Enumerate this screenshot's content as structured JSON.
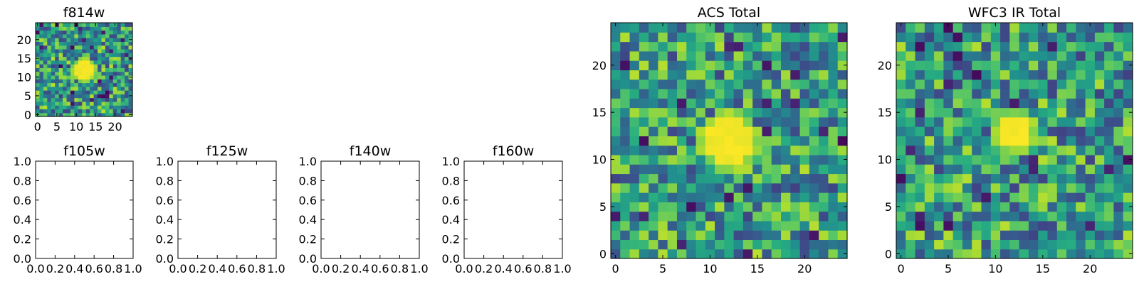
{
  "chart_data": [
    {
      "type": "heatmap",
      "title": "f814w",
      "colormap": "viridis",
      "grid_size": 25,
      "xlim": [
        -0.5,
        24.5
      ],
      "ylim": [
        -0.5,
        24.5
      ],
      "x_ticks": [
        0,
        5,
        10,
        15,
        20
      ],
      "y_ticks": [
        0,
        5,
        10,
        15,
        20
      ],
      "source": {
        "center": [
          12,
          12
        ],
        "radius": 2
      }
    },
    {
      "type": "heatmap",
      "title": "ACS Total",
      "colormap": "viridis",
      "grid_size": 25,
      "xlim": [
        -0.5,
        24.5
      ],
      "ylim": [
        -0.5,
        24.5
      ],
      "x_ticks": [
        0,
        5,
        10,
        15,
        20
      ],
      "y_ticks": [
        0,
        5,
        10,
        15,
        20
      ],
      "source": {
        "center": [
          12,
          12
        ],
        "radius": 2
      }
    },
    {
      "type": "heatmap",
      "title": "WFC3 IR Total",
      "colormap": "viridis",
      "grid_size": 25,
      "xlim": [
        -0.5,
        24.5
      ],
      "ylim": [
        -0.5,
        24.5
      ],
      "x_ticks": [
        0,
        5,
        10,
        15,
        20
      ],
      "y_ticks": [
        0,
        5,
        10,
        15,
        20
      ],
      "source": {
        "center": [
          12,
          13
        ],
        "radius": 1
      }
    },
    {
      "type": "empty",
      "title": "f105w",
      "xlim": [
        0,
        1
      ],
      "ylim": [
        0,
        1
      ],
      "x_ticks": [
        "0.0",
        "0.2",
        "0.4",
        "0.6",
        "0.8",
        "1.0"
      ],
      "y_ticks": [
        "0.0",
        "0.2",
        "0.4",
        "0.6",
        "0.8",
        "1.0"
      ]
    },
    {
      "type": "empty",
      "title": "f125w",
      "xlim": [
        0,
        1
      ],
      "ylim": [
        0,
        1
      ],
      "x_ticks": [
        "0.0",
        "0.2",
        "0.4",
        "0.6",
        "0.8",
        "1.0"
      ],
      "y_ticks": [
        "0.0",
        "0.2",
        "0.4",
        "0.6",
        "0.8",
        "1.0"
      ]
    },
    {
      "type": "empty",
      "title": "f140w",
      "xlim": [
        0,
        1
      ],
      "ylim": [
        0,
        1
      ],
      "x_ticks": [
        "0.0",
        "0.2",
        "0.4",
        "0.6",
        "0.8",
        "1.0"
      ],
      "y_ticks": [
        "0.0",
        "0.2",
        "0.4",
        "0.6",
        "0.8",
        "1.0"
      ]
    },
    {
      "type": "empty",
      "title": "f160w",
      "xlim": [
        0,
        1
      ],
      "ylim": [
        0,
        1
      ],
      "x_ticks": [
        "0.0",
        "0.2",
        "0.4",
        "0.6",
        "0.8",
        "1.0"
      ],
      "y_ticks": [
        "0.0",
        "0.2",
        "0.4",
        "0.6",
        "0.8",
        "1.0"
      ]
    }
  ]
}
